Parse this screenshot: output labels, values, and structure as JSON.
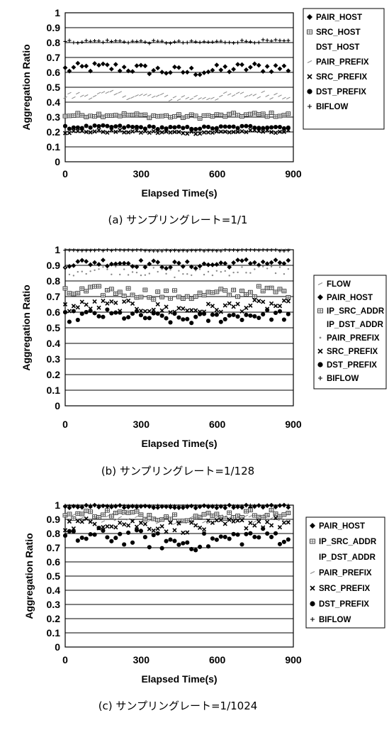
{
  "chart_data": [
    {
      "type": "scatter",
      "caption": "(a) サンプリングレート=1/1",
      "xlabel": "Elapsed Time(s)",
      "ylabel": "Aggregation Ratio",
      "xlim": [
        0,
        900
      ],
      "ylim": [
        0,
        1
      ],
      "xticks": [
        "0",
        "300",
        "600",
        "900"
      ],
      "yticks": [
        "0",
        "0.1",
        "0.2",
        "0.3",
        "0.4",
        "0.5",
        "0.6",
        "0.7",
        "0.8",
        "0.9",
        "1"
      ],
      "grid": true,
      "legend_position": "right",
      "series": [
        {
          "name": "PAIR_HOST",
          "marker": "diamond",
          "base": 0.62,
          "amp": 0.035
        },
        {
          "name": "SRC_HOST",
          "marker": "hatched",
          "base": 0.31,
          "amp": 0.015
        },
        {
          "name": "DST_HOST",
          "marker": "none",
          "base": 0.39,
          "amp": 0.01
        },
        {
          "name": "PAIR_PREFIX",
          "marker": "dash",
          "base": 0.44,
          "amp": 0.025
        },
        {
          "name": "SRC_PREFIX",
          "marker": "x",
          "base": 0.2,
          "amp": 0.01
        },
        {
          "name": "DST_PREFIX",
          "marker": "circle",
          "base": 0.23,
          "amp": 0.01
        },
        {
          "name": "BIFLOW",
          "marker": "plus",
          "base": 0.805,
          "amp": 0.01
        }
      ]
    },
    {
      "type": "scatter",
      "caption": "(b) サンプリングレート=1/128",
      "xlabel": "Elapsed Time(s)",
      "ylabel": "Aggregation Ratio",
      "xlim": [
        0,
        900
      ],
      "ylim": [
        0,
        1
      ],
      "xticks": [
        "0",
        "300",
        "600",
        "900"
      ],
      "yticks": [
        "0",
        "0.1",
        "0.2",
        "0.3",
        "0.4",
        "0.5",
        "0.6",
        "0.7",
        "0.8",
        "0.9",
        "1"
      ],
      "grid": true,
      "legend_position": "right",
      "series": [
        {
          "name": "FLOW",
          "marker": "dash",
          "base": 1.0,
          "amp": 0.0
        },
        {
          "name": "PAIR_HOST",
          "marker": "diamond",
          "base": 0.91,
          "amp": 0.025
        },
        {
          "name": "IP_SRC_ADDR",
          "marker": "hatched",
          "base": 0.72,
          "amp": 0.035
        },
        {
          "name": "IP_DST_ADDR",
          "marker": "none",
          "base": 0.82,
          "amp": 0.02
        },
        {
          "name": "PAIR_PREFIX",
          "marker": "dot",
          "base": 0.86,
          "amp": 0.03
        },
        {
          "name": "SRC_PREFIX",
          "marker": "x",
          "base": 0.63,
          "amp": 0.035
        },
        {
          "name": "DST_PREFIX",
          "marker": "circle",
          "base": 0.57,
          "amp": 0.035
        },
        {
          "name": "BIFLOW",
          "marker": "plus",
          "base": 0.995,
          "amp": 0.003
        }
      ]
    },
    {
      "type": "scatter",
      "caption": "(c) サンプリングレート=1/1024",
      "xlabel": "Elapsed Time(s)",
      "ylabel": "Aggregation Ratio",
      "xlim": [
        0,
        900
      ],
      "ylim": [
        0,
        1
      ],
      "xticks": [
        "0",
        "300",
        "600",
        "900"
      ],
      "yticks": [
        "0",
        "0.1",
        "0.2",
        "0.3",
        "0.4",
        "0.5",
        "0.6",
        "0.7",
        "0.8",
        "0.9",
        "1"
      ],
      "grid": true,
      "legend_position": "right",
      "series": [
        {
          "name": "PAIR_HOST",
          "marker": "diamond",
          "base": 0.99,
          "amp": 0.01
        },
        {
          "name": "IP_SRC_ADDR",
          "marker": "hatched",
          "base": 0.93,
          "amp": 0.03
        },
        {
          "name": "IP_DST_ADDR",
          "marker": "none",
          "base": 0.95,
          "amp": 0.02
        },
        {
          "name": "PAIR_PREFIX",
          "marker": "dash",
          "base": 0.9,
          "amp": 0.03
        },
        {
          "name": "SRC_PREFIX",
          "marker": "x",
          "base": 0.86,
          "amp": 0.04
        },
        {
          "name": "DST_PREFIX",
          "marker": "circle",
          "base": 0.76,
          "amp": 0.06
        },
        {
          "name": "BIFLOW",
          "marker": "plus",
          "base": 0.995,
          "amp": 0.003
        }
      ]
    }
  ]
}
